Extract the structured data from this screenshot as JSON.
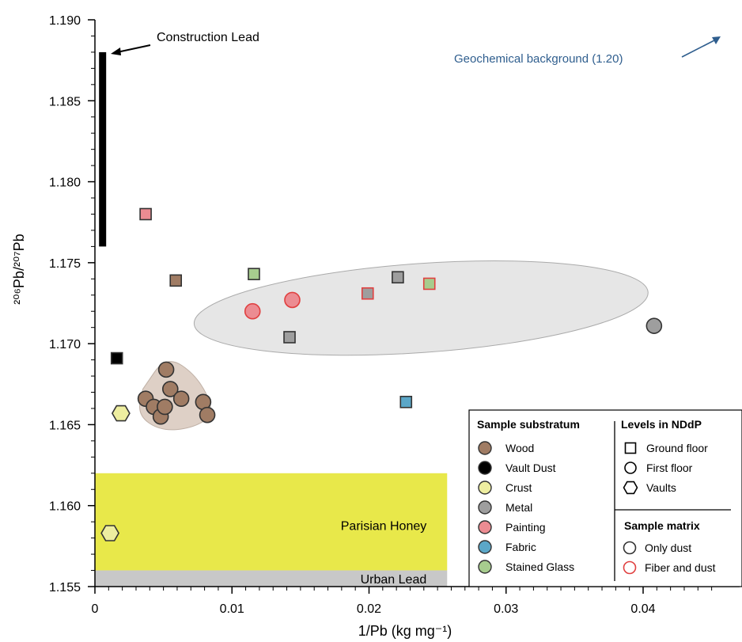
{
  "chart_data": {
    "type": "scatter",
    "xlabel": "1/Pb (kg mg⁻¹)",
    "ylabel": "²⁰⁶Pb/²⁰⁷Pb",
    "xlim": [
      0,
      0.045
    ],
    "ylim": [
      1.155,
      1.19
    ],
    "xticks": [
      "0",
      "0.01",
      "0.02",
      "0.03",
      "0.04"
    ],
    "xtick_values": [
      0,
      0.01,
      0.02,
      0.03,
      0.04
    ],
    "yticks": [
      "1.155",
      "1.160",
      "1.165",
      "1.170",
      "1.175",
      "1.180",
      "1.185",
      "1.190"
    ],
    "ytick_values": [
      1.155,
      1.16,
      1.165,
      1.17,
      1.175,
      1.18,
      1.185,
      1.19
    ],
    "grid": false,
    "bands": [
      {
        "label": "Parisian Honey",
        "y0": 1.156,
        "y1": 1.162,
        "color": "#e8e84a"
      },
      {
        "label": "Urban Lead",
        "y0": 1.155,
        "y1": 1.156,
        "color": "#c8c8c8"
      }
    ],
    "construction_lead": {
      "label": "Construction Lead",
      "x": 0.0003,
      "y0": 1.176,
      "y1": 1.188
    },
    "geochemical_background": {
      "label": "Geochemical background (1.20)"
    },
    "colors": {
      "Wood": "#a07c64",
      "Vault Dust": "#000000",
      "Crust": "#eeeea0",
      "Metal": "#9e9e9e",
      "Painting": "#ec8c92",
      "Fabric": "#5ba7c8",
      "Stained Glass": "#a7cc8e",
      "outline_dust": "#333333",
      "outline_fiber": "#e04040"
    },
    "series": [
      {
        "name": "Wood",
        "shape": "circle",
        "matrix": "dust",
        "points": [
          [
            0.0037,
            1.1666
          ],
          [
            0.0043,
            1.1661
          ],
          [
            0.0048,
            1.1655
          ],
          [
            0.0051,
            1.1661
          ],
          [
            0.0052,
            1.1684
          ],
          [
            0.0055,
            1.1672
          ],
          [
            0.0063,
            1.1666
          ],
          [
            0.0079,
            1.1664
          ],
          [
            0.0082,
            1.1656
          ]
        ]
      },
      {
        "name": "Wood",
        "shape": "square",
        "matrix": "dust",
        "points": [
          [
            0.0059,
            1.1739
          ]
        ]
      },
      {
        "name": "Vault Dust",
        "shape": "square",
        "matrix": "dust",
        "points": [
          [
            0.0016,
            1.1691
          ]
        ]
      },
      {
        "name": "Crust",
        "shape": "hexagon",
        "matrix": "dust",
        "points": [
          [
            0.0019,
            1.1657
          ],
          [
            0.0011,
            1.1583
          ]
        ]
      },
      {
        "name": "Metal",
        "shape": "circle",
        "matrix": "dust",
        "points": [
          [
            0.0408,
            1.1711
          ]
        ]
      },
      {
        "name": "Metal",
        "shape": "square",
        "matrix": "dust",
        "points": [
          [
            0.0142,
            1.1704
          ],
          [
            0.0221,
            1.1741
          ]
        ]
      },
      {
        "name": "Painting",
        "shape": "square",
        "matrix": "dust",
        "points": [
          [
            0.0037,
            1.178
          ]
        ]
      },
      {
        "name": "Painting",
        "shape": "circle",
        "matrix": "fiber",
        "points": [
          [
            0.0115,
            1.172
          ],
          [
            0.0144,
            1.1727
          ]
        ]
      },
      {
        "name": "Fabric",
        "shape": "square",
        "matrix": "dust",
        "points": [
          [
            0.0227,
            1.1664
          ]
        ]
      },
      {
        "name": "Stained Glass",
        "shape": "square",
        "matrix": "dust",
        "points": [
          [
            0.0116,
            1.1743
          ]
        ]
      },
      {
        "name": "Metal",
        "shape": "square",
        "matrix": "fiber",
        "points": [
          [
            0.0199,
            1.1731
          ]
        ]
      },
      {
        "name": "Stained Glass",
        "shape": "square",
        "matrix": "fiber",
        "points": [
          [
            0.0244,
            1.1737
          ]
        ]
      }
    ],
    "regions": [
      {
        "shape": "ellipse",
        "color": "#e6e6e6",
        "cx": 0.0238,
        "cy": 1.1722,
        "rx": 0.0166,
        "ry": 0.00275,
        "rot": -4
      },
      {
        "shape": "blob",
        "color": "#ded0c6",
        "points": [
          [
            0.0035,
            1.1672
          ],
          [
            0.0052,
            1.1693
          ],
          [
            0.0075,
            1.168
          ],
          [
            0.0088,
            1.1657
          ],
          [
            0.0072,
            1.1648
          ],
          [
            0.0048,
            1.1646
          ],
          [
            0.0031,
            1.1656
          ]
        ]
      }
    ],
    "legend": {
      "position": "bottom-right",
      "substratum_title": "Sample substratum",
      "substratum": [
        "Wood",
        "Vault Dust",
        "Crust",
        "Metal",
        "Painting",
        "Fabric",
        "Stained Glass"
      ],
      "levels_title": "Levels in NDdP",
      "levels": [
        {
          "label": "Ground floor",
          "shape": "square"
        },
        {
          "label": "First floor",
          "shape": "circle"
        },
        {
          "label": "Vaults",
          "shape": "hexagon"
        }
      ],
      "matrix_title": "Sample matrix",
      "matrix": [
        {
          "label": "Only dust",
          "outline": "#333333"
        },
        {
          "label": "Fiber and dust",
          "outline": "#e04040"
        }
      ]
    }
  }
}
